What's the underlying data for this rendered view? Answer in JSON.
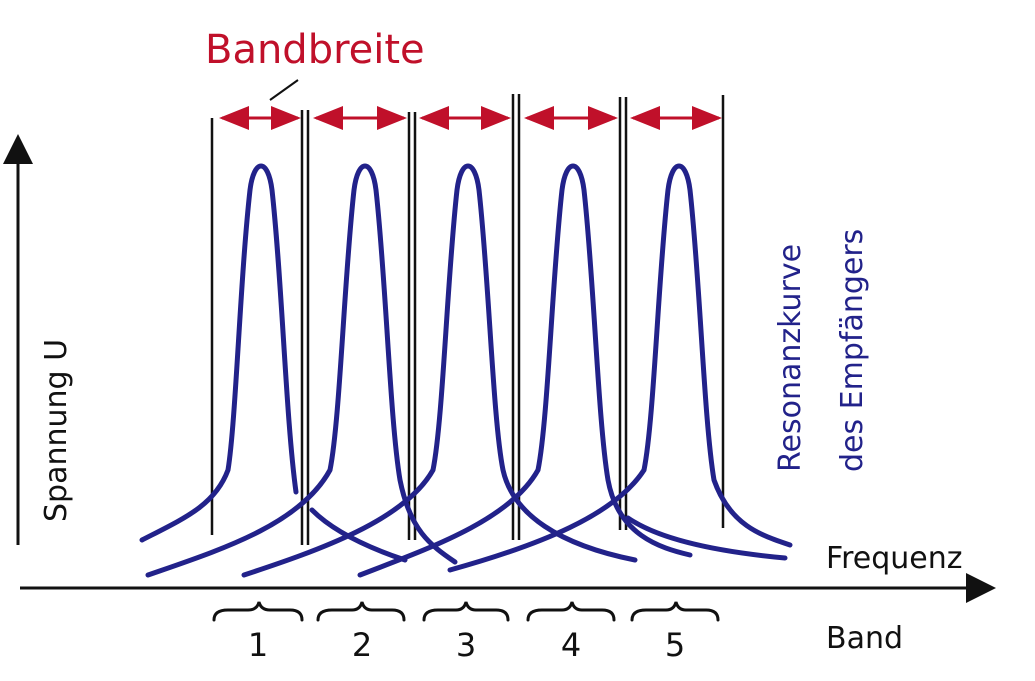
{
  "title": "Bandbreite",
  "y_axis_label": "Spannung U",
  "x_axis_label": "Frequenz",
  "curve_label_line1": "Resonanzkurve",
  "curve_label_line2": "des Empfängers",
  "band_axis_label": "Band",
  "bands": [
    "1",
    "2",
    "3",
    "4",
    "5"
  ],
  "colors": {
    "title_red": "#c0102a",
    "curve_blue": "#22228a",
    "ink_black": "#111111"
  }
}
